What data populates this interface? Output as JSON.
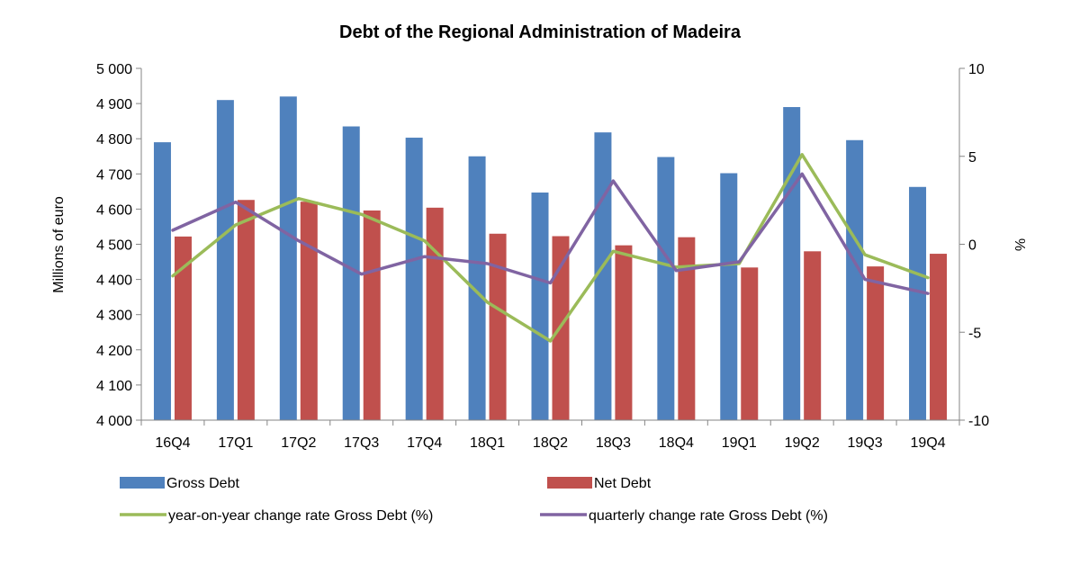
{
  "chart_data": {
    "type": "bar",
    "title": "Debt of the Regional Administration of Madeira",
    "xlabel": "",
    "ylabel": "Millions of euro",
    "y2label": "%",
    "categories": [
      "16Q4",
      "17Q1",
      "17Q2",
      "17Q3",
      "17Q4",
      "18Q1",
      "18Q2",
      "18Q3",
      "18Q4",
      "19Q1",
      "19Q2",
      "19Q3",
      "19Q4"
    ],
    "ylim": [
      4000,
      5000
    ],
    "yticks": [
      4000,
      4100,
      4200,
      4300,
      4400,
      4500,
      4600,
      4700,
      4800,
      4900,
      5000
    ],
    "ytick_labels": [
      "4 000",
      "4 100",
      "4 200",
      "4 300",
      "4 400",
      "4 500",
      "4 600",
      "4 700",
      "4 800",
      "4 900",
      "5 000"
    ],
    "y2lim": [
      -10,
      10
    ],
    "y2ticks": [
      -10,
      -5,
      0,
      5,
      10
    ],
    "y2tick_labels": [
      "-10",
      "-5",
      "0",
      "5",
      "10"
    ],
    "grid": false,
    "legend_position": "bottom",
    "series": [
      {
        "name": "Gross Debt",
        "kind": "bar",
        "axis": "left",
        "color": "#4F81BD",
        "values": [
          4790,
          4910,
          4920,
          4835,
          4803,
          4750,
          4647,
          4818,
          4748,
          4702,
          4890,
          4796,
          4663
        ]
      },
      {
        "name": "Net Debt",
        "kind": "bar",
        "axis": "left",
        "color": "#C0504D",
        "values": [
          4522,
          4626,
          4621,
          4596,
          4604,
          4530,
          4523,
          4497,
          4520,
          4434,
          4480,
          4437,
          4473
        ]
      },
      {
        "name": "year-on-year change rate Gross Debt (%)",
        "kind": "line",
        "axis": "right",
        "color": "#9BBB59",
        "values": [
          -1.8,
          1.1,
          2.6,
          1.7,
          0.2,
          -3.3,
          -5.5,
          -0.4,
          -1.3,
          -1.1,
          5.1,
          -0.6,
          -1.9
        ]
      },
      {
        "name": "quarterly change rate Gross Debt (%)",
        "kind": "line",
        "axis": "right",
        "color": "#8064A2",
        "values": [
          0.8,
          2.4,
          0.2,
          -1.7,
          -0.7,
          -1.1,
          -2.2,
          3.6,
          -1.5,
          -1.0,
          4.0,
          -2.0,
          -2.8
        ]
      }
    ]
  }
}
